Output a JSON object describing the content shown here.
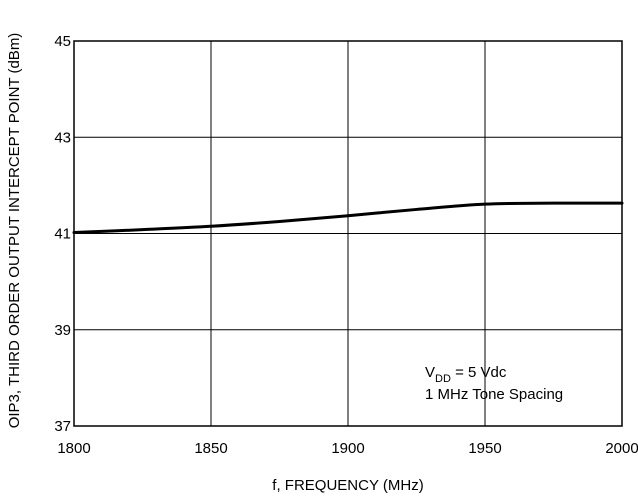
{
  "chart_data": {
    "type": "line",
    "title": "",
    "xlabel": "f, FREQUENCY (MHz)",
    "ylabel": "OIP3, THIRD ORDER OUTPUT INTERCEPT POINT (dBm)",
    "xlim": [
      1800,
      2000
    ],
    "ylim": [
      37,
      45
    ],
    "xticks": [
      1800,
      1850,
      1900,
      1950,
      2000
    ],
    "yticks": [
      37,
      39,
      41,
      43,
      45
    ],
    "grid": true,
    "series": [
      {
        "x": [
          1800,
          1825,
          1850,
          1875,
          1900,
          1925,
          1950,
          1975,
          2000
        ],
        "values": [
          41.02,
          41.08,
          41.15,
          41.25,
          41.37,
          41.5,
          41.61,
          41.63,
          41.63
        ]
      }
    ],
    "annotations": {
      "vdd_main": "V",
      "vdd_sub": "DD",
      "vdd_rest": " = 5 Vdc",
      "spacing": "1 MHz Tone Spacing"
    }
  }
}
